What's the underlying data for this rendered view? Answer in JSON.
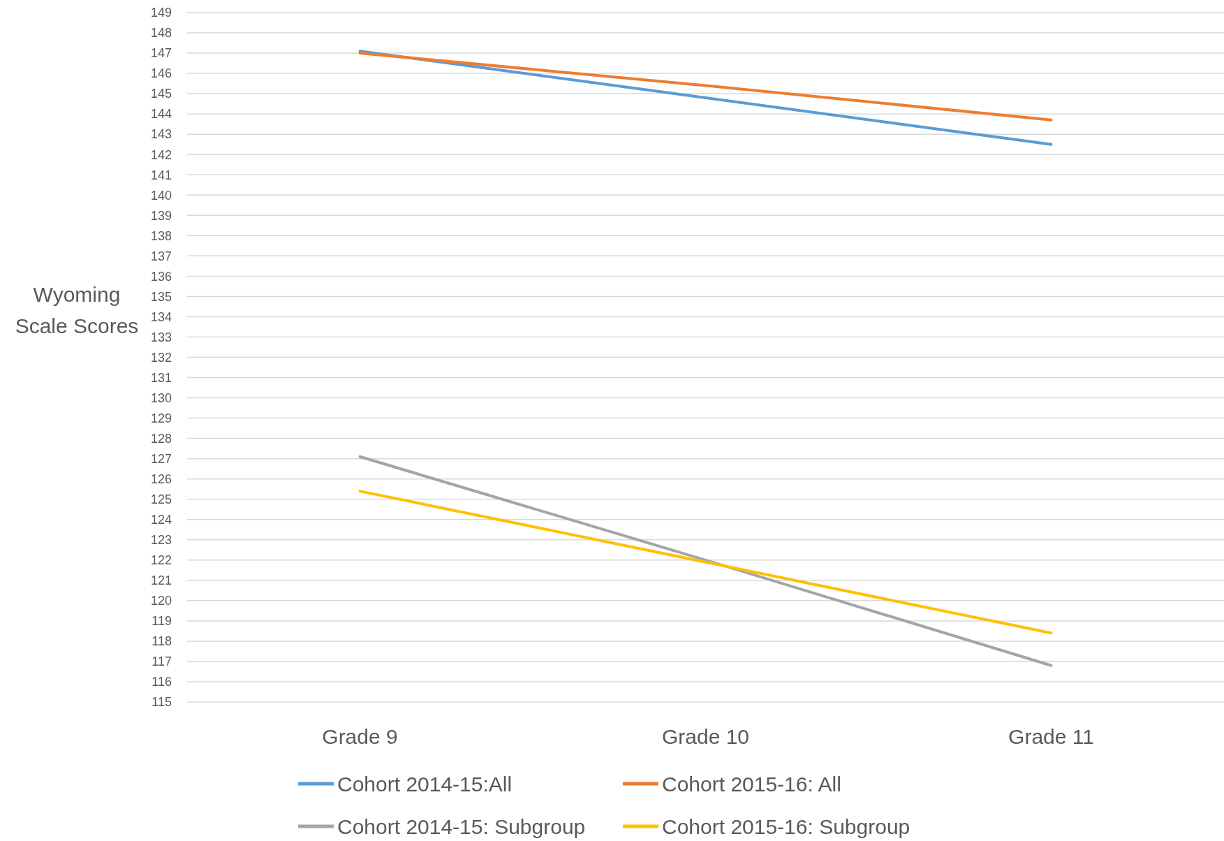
{
  "chart_data": {
    "type": "line",
    "ylabel": "Wyoming Scale Scores",
    "categories": [
      "Grade 9",
      "Grade 10",
      "Grade 11"
    ],
    "series": [
      {
        "name": "Cohort 2014-15:All",
        "color": "#5b9bd5",
        "values": [
          147.1,
          144.8,
          142.5
        ]
      },
      {
        "name": "Cohort 2015-16: All",
        "color": "#ed7d31",
        "values": [
          147.0,
          145.4,
          143.7
        ]
      },
      {
        "name": "Cohort 2014-15: Subgroup",
        "color": "#a5a5a5",
        "values": [
          127.1,
          122.0,
          116.8
        ]
      },
      {
        "name": "Cohort 2015-16: Subgroup",
        "color": "#ffc000",
        "values": [
          125.4,
          121.9,
          118.4
        ]
      }
    ],
    "ylim": [
      115,
      149
    ],
    "yticks": [
      115,
      116,
      117,
      118,
      119,
      120,
      121,
      122,
      123,
      124,
      125,
      126,
      127,
      128,
      129,
      130,
      131,
      132,
      133,
      134,
      135,
      136,
      137,
      138,
      139,
      140,
      141,
      142,
      143,
      144,
      145,
      146,
      147,
      148,
      149
    ],
    "grid": "y",
    "legend": "bottom",
    "marker": "none",
    "line_style": "solid"
  }
}
